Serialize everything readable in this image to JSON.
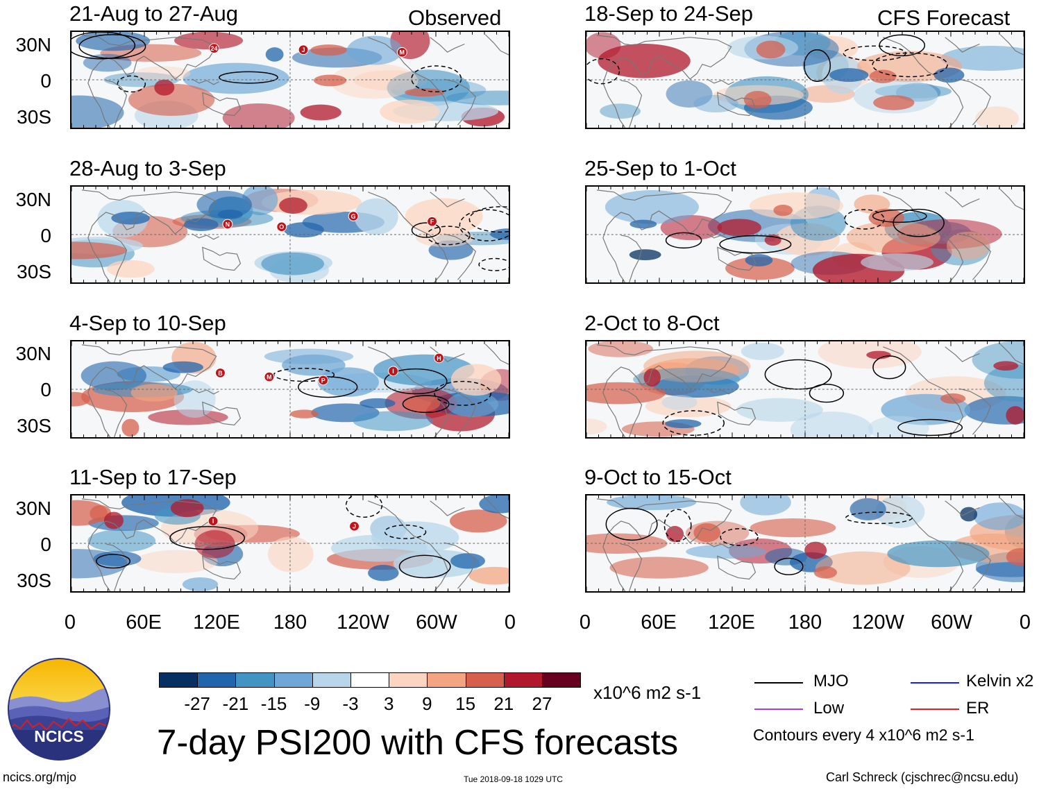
{
  "section_labels": {
    "observed": "Observed",
    "forecast": "CFS Forecast"
  },
  "main_title": "7-day PSI200 with CFS forecasts",
  "units": "x10^6 m2 s-1",
  "footer": {
    "left": "ncics.org/mjo",
    "center": "Tue 2018-09-18 1029 UTC",
    "right": "Carl Schreck (cjschrec@ncsu.edu)"
  },
  "logo_text": "NCICS",
  "legend": {
    "items": [
      {
        "label": "MJO",
        "color": "#000000"
      },
      {
        "label": "Kelvin x2",
        "color": "#1a1aff"
      },
      {
        "label": "Low",
        "color": "#a040e0"
      },
      {
        "label": "ER",
        "color": "#e02020"
      }
    ],
    "note": "Contours every 4 x10^6 m2 s-1"
  },
  "colorbar": {
    "colors": [
      "#053061",
      "#2166ac",
      "#4393c3",
      "#6fa8d6",
      "#b7d6ea",
      "#ffffff",
      "#fcd5c0",
      "#f3a480",
      "#d6604d",
      "#b2182b",
      "#67001f"
    ],
    "labels": [
      "-27",
      "-21",
      "-15",
      "-9",
      "-3",
      "3",
      "9",
      "15",
      "21",
      "27"
    ]
  },
  "chart_data": {
    "type": "heatmap",
    "variable": "7-day PSI200 anomaly",
    "units": "x10^6 m2 s-1",
    "x_ticks": [
      "0",
      "60E",
      "120E",
      "180",
      "120W",
      "60W",
      "0"
    ],
    "y_ticks": [
      "30N",
      "0",
      "30S"
    ],
    "contour_interval": 4,
    "panels": [
      {
        "period": "21-Aug to 27-Aug",
        "source": "Observed",
        "storms": [
          "24",
          "J",
          "M"
        ]
      },
      {
        "period": "28-Aug to 3-Sep",
        "source": "Observed",
        "storms": [
          "N",
          "O",
          "G",
          "F"
        ]
      },
      {
        "period": "4-Sep to 10-Sep",
        "source": "Observed",
        "storms": [
          "B",
          "M",
          "P",
          "I",
          "H"
        ]
      },
      {
        "period": "11-Sep to 17-Sep",
        "source": "Observed",
        "storms": [
          "I",
          "J"
        ]
      },
      {
        "period": "18-Sep to 24-Sep",
        "source": "CFS Forecast",
        "storms": []
      },
      {
        "period": "25-Sep to 1-Oct",
        "source": "CFS Forecast",
        "storms": []
      },
      {
        "period": "2-Oct to 8-Oct",
        "source": "CFS Forecast",
        "storms": []
      },
      {
        "period": "9-Oct to 15-Oct",
        "source": "CFS Forecast",
        "storms": []
      }
    ]
  }
}
